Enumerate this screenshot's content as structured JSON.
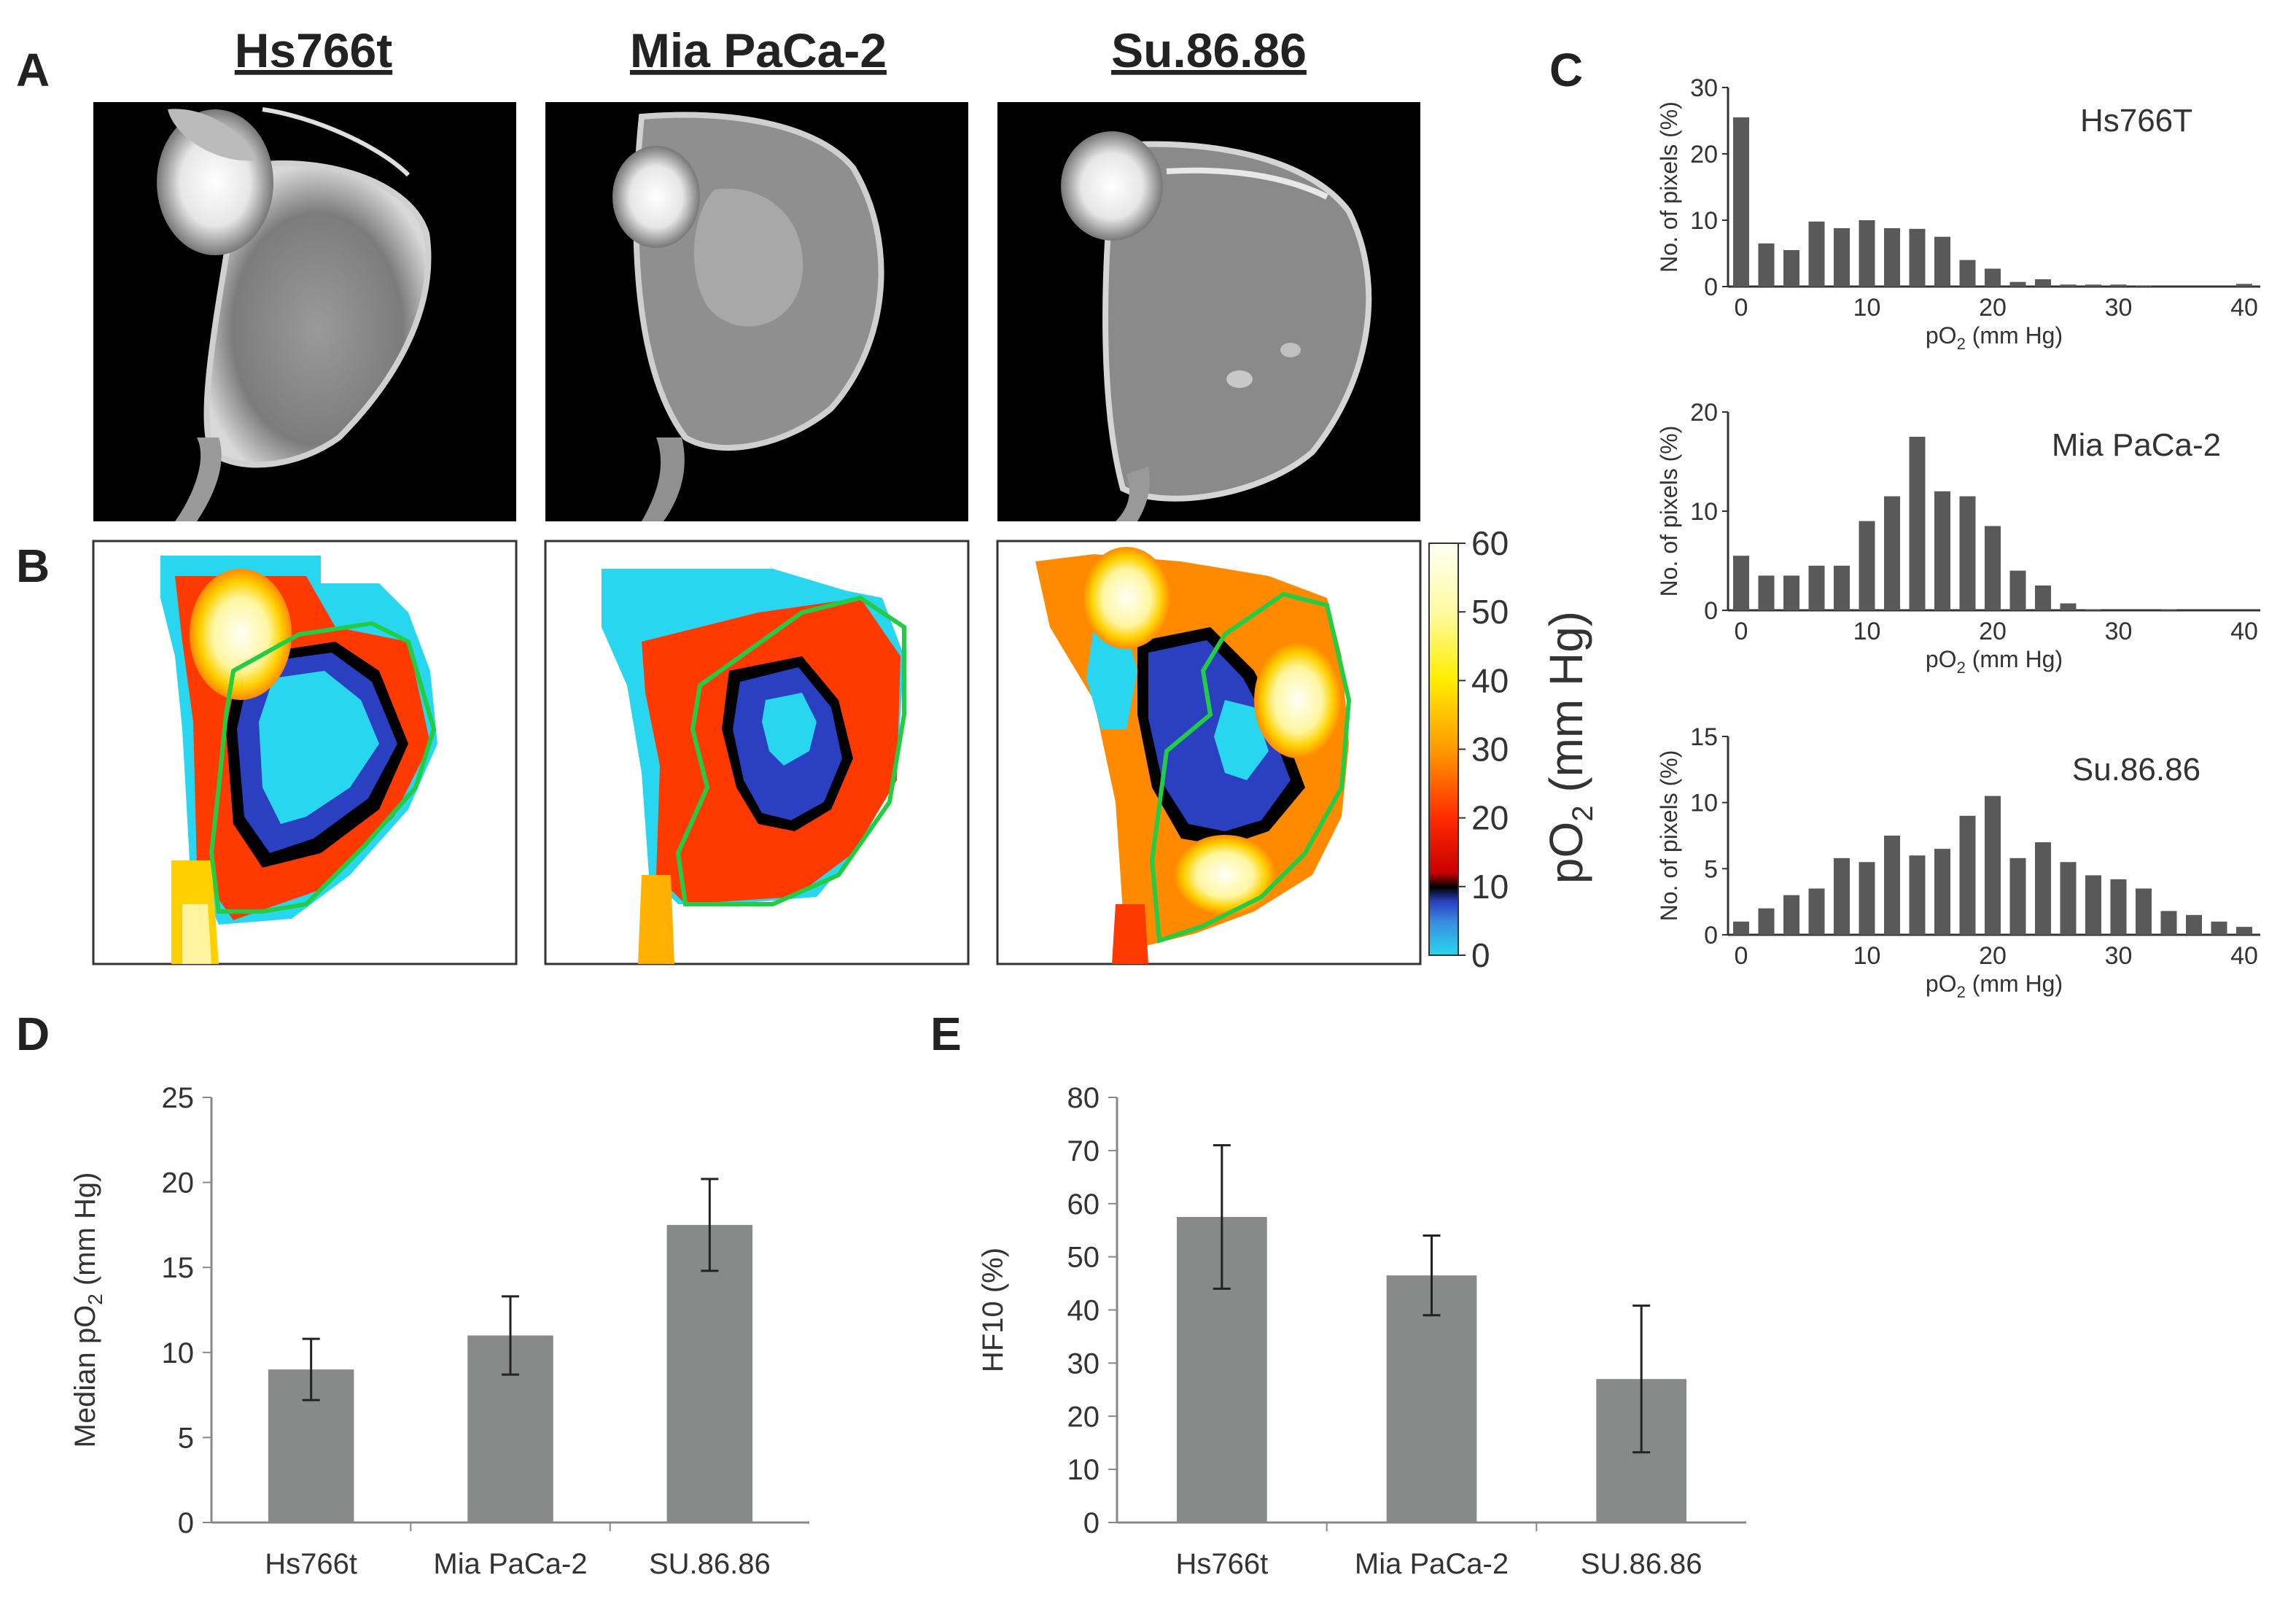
{
  "panel_labels": {
    "a": "A",
    "b": "B",
    "c": "C",
    "d": "D",
    "e": "E"
  },
  "cell_lines": [
    "Hs766t",
    "Mia PaCa-2",
    "Su.86.86"
  ],
  "colorbar": {
    "label": "pO",
    "label_sub": "2",
    "label_unit": " (mm Hg)",
    "ticks": [
      "60",
      "50",
      "40",
      "30",
      "20",
      "10",
      "0"
    ]
  },
  "chart_data": [
    {
      "id": "C-hs766t",
      "type": "bar",
      "title": "Hs766T",
      "xlabel": "pO",
      "xlabel_sub": "2",
      "xlabel_unit": " (mm Hg)",
      "ylabel": "No. of pixels (%)",
      "x": [
        0,
        2,
        4,
        6,
        8,
        10,
        12,
        14,
        16,
        18,
        20,
        22,
        24,
        26,
        28,
        30,
        32,
        34,
        36,
        38,
        40
      ],
      "values": [
        25.5,
        6.5,
        5.5,
        9.8,
        8.8,
        10,
        8.8,
        8.7,
        7.5,
        4,
        2.7,
        0.7,
        1.1,
        0.3,
        0.3,
        0.3,
        0.1,
        0,
        0,
        0,
        0.4
      ],
      "xlim": [
        0,
        40
      ],
      "ylim": [
        0,
        30
      ],
      "xticks": [
        "0",
        "10",
        "20",
        "30",
        "40"
      ],
      "yticks": [
        "0",
        "10",
        "20",
        "30"
      ]
    },
    {
      "id": "C-miapaca",
      "type": "bar",
      "title": "Mia PaCa-2",
      "xlabel": "pO",
      "xlabel_sub": "2",
      "xlabel_unit": " (mm Hg)",
      "ylabel": "No. of pixels (%)",
      "x": [
        0,
        2,
        4,
        6,
        8,
        10,
        12,
        14,
        16,
        18,
        20,
        22,
        24,
        26,
        28,
        30,
        32,
        34,
        36,
        38,
        40
      ],
      "values": [
        5.5,
        3.5,
        3.5,
        4.5,
        4.5,
        9,
        11.5,
        17.5,
        12,
        11.5,
        8.5,
        4,
        2.5,
        0.7,
        0.1,
        0,
        0,
        0.1,
        0,
        0,
        0
      ],
      "xlim": [
        0,
        40
      ],
      "ylim": [
        0,
        20
      ],
      "xticks": [
        "0",
        "10",
        "20",
        "30",
        "40"
      ],
      "yticks": [
        "0",
        "10",
        "20"
      ]
    },
    {
      "id": "C-su8686",
      "type": "bar",
      "title": "Su.86.86",
      "xlabel": "pO",
      "xlabel_sub": "2",
      "xlabel_unit": " (mm Hg)",
      "ylabel": "No. of pixels (%)",
      "x": [
        0,
        2,
        4,
        6,
        8,
        10,
        12,
        14,
        16,
        18,
        20,
        22,
        24,
        26,
        28,
        30,
        32,
        34,
        36,
        38,
        40
      ],
      "values": [
        1,
        2,
        3,
        3.5,
        5.8,
        5.5,
        7.5,
        6,
        6.5,
        9,
        10.5,
        5.8,
        7,
        5.5,
        4.5,
        4.2,
        3.5,
        1.8,
        1.5,
        1,
        0.6
      ],
      "xlim": [
        0,
        40
      ],
      "ylim": [
        0,
        15
      ],
      "xticks": [
        "0",
        "10",
        "20",
        "30",
        "40"
      ],
      "yticks": [
        "0",
        "5",
        "10",
        "15"
      ]
    },
    {
      "id": "D-median",
      "type": "bar",
      "categories": [
        "Hs766t",
        "Mia PaCa-2",
        "SU.86.86"
      ],
      "values": [
        9,
        11,
        17.5
      ],
      "errors": [
        1.8,
        2.3,
        2.7
      ],
      "ylabel": "Median pO",
      "ylabel_sub": "2",
      "ylabel_unit": " (mm Hg)",
      "ylim": [
        0,
        25
      ],
      "yticks": [
        "0",
        "5",
        "10",
        "15",
        "20",
        "25"
      ]
    },
    {
      "id": "E-hf10",
      "type": "bar",
      "categories": [
        "Hs766t",
        "Mia PaCa-2",
        "SU.86.86"
      ],
      "values": [
        57.5,
        46.5,
        27
      ],
      "errors": [
        13.5,
        7.5,
        13.8
      ],
      "ylabel": "HF10 (%)",
      "ylim": [
        0,
        80
      ],
      "yticks": [
        "0",
        "10",
        "20",
        "30",
        "40",
        "50",
        "60",
        "70",
        "80"
      ]
    }
  ]
}
